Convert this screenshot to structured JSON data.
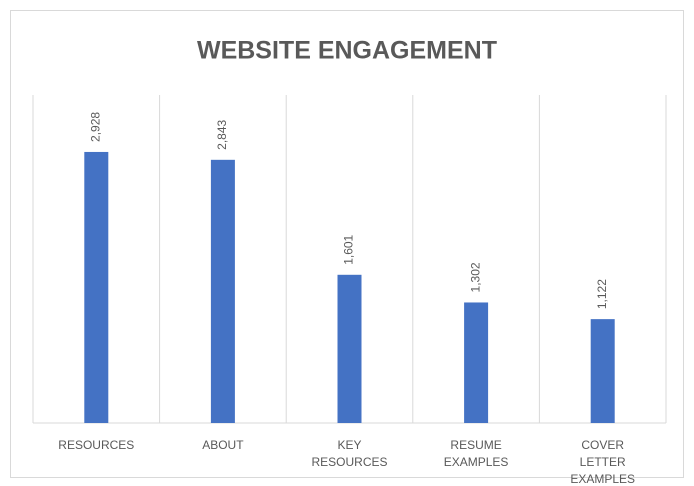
{
  "chart_data": {
    "type": "bar",
    "title": "WEBSITE ENGAGEMENT",
    "categories": [
      "RESOURCES",
      "ABOUT",
      "KEY RESOURCES",
      "RESUME EXAMPLES",
      "COVER LETTER EXAMPLES"
    ],
    "values": [
      2928,
      2843,
      1601,
      1302,
      1122
    ],
    "value_labels": [
      "2,928",
      "2,843",
      "1,601",
      "1,302",
      "1,122"
    ],
    "color": "#4472c4",
    "ylim": [
      0,
      3500
    ]
  }
}
